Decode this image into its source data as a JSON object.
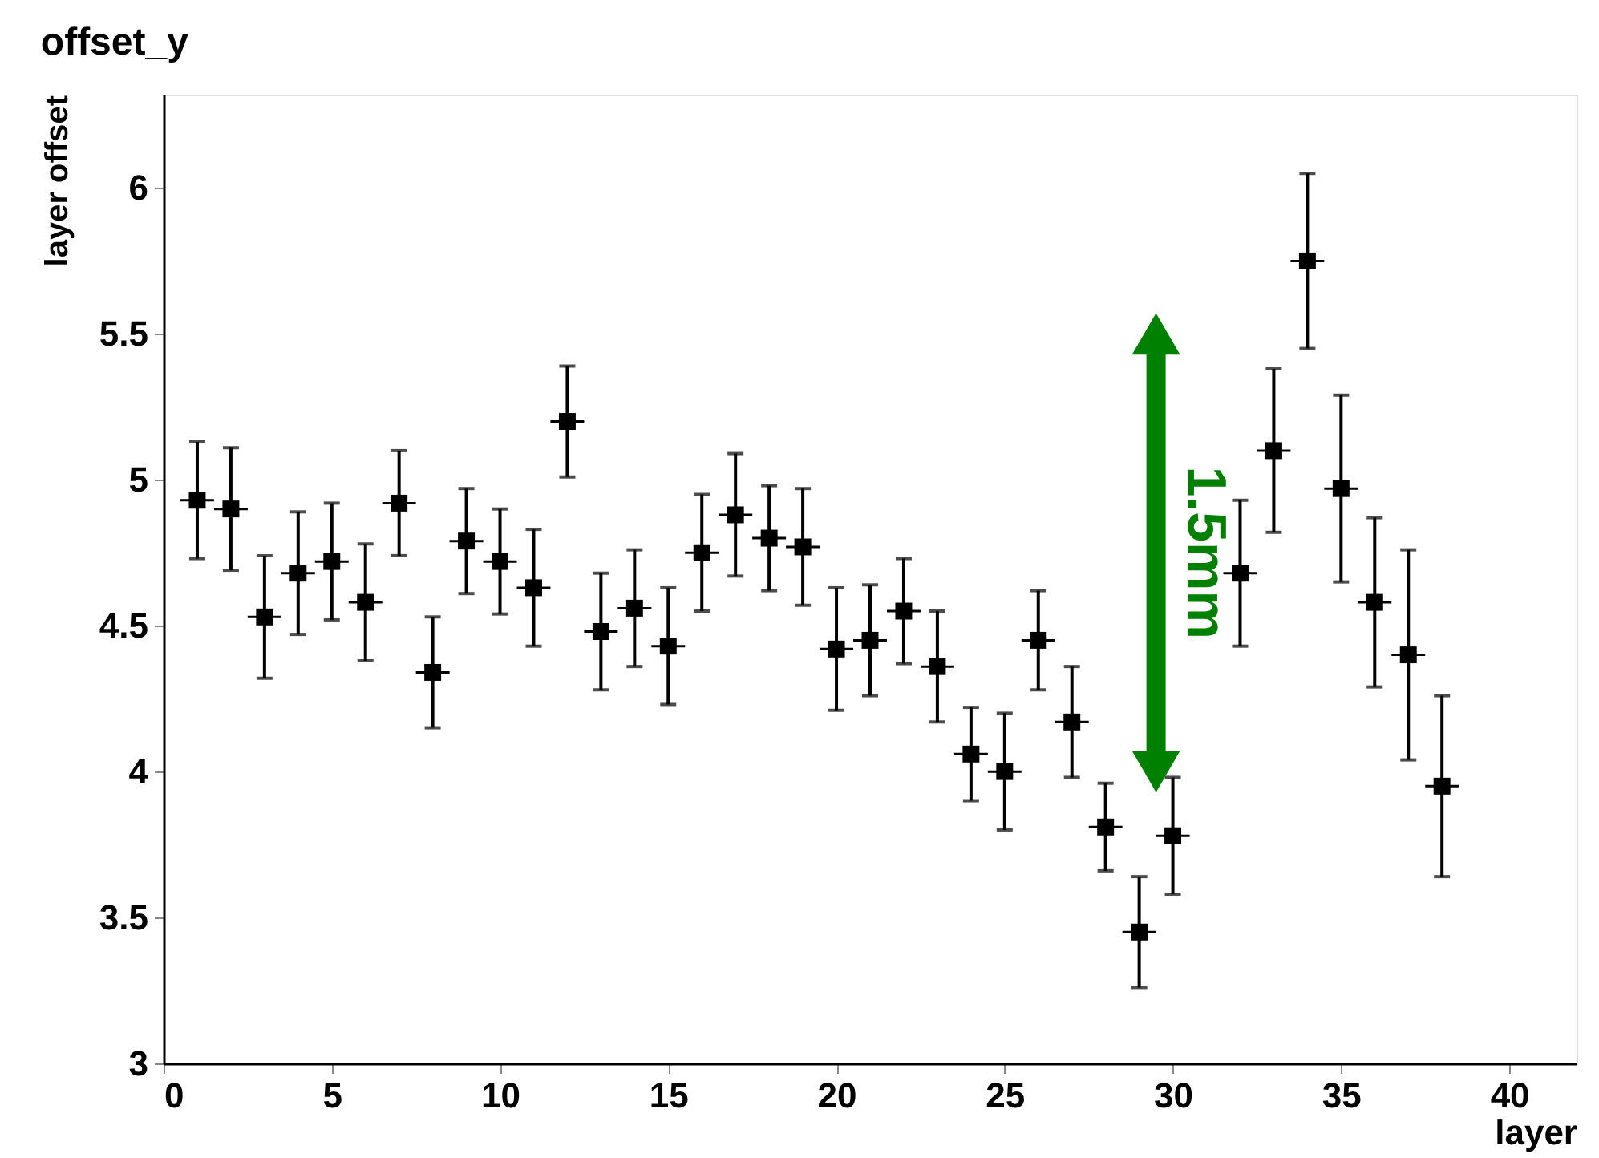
{
  "chart_data": {
    "type": "scatter",
    "title": "offset_y",
    "xlabel": "layer",
    "ylabel": "layer offset",
    "x": [
      1,
      2,
      3,
      4,
      5,
      6,
      7,
      8,
      9,
      10,
      11,
      12,
      13,
      14,
      15,
      16,
      17,
      18,
      19,
      20,
      21,
      22,
      23,
      24,
      25,
      26,
      27,
      28,
      29,
      30,
      32,
      33,
      34,
      35,
      36,
      37,
      38
    ],
    "values": [
      4.93,
      4.9,
      4.53,
      4.68,
      4.72,
      4.58,
      4.92,
      4.34,
      4.79,
      4.72,
      4.63,
      5.2,
      4.48,
      4.56,
      4.43,
      4.75,
      4.88,
      4.8,
      4.77,
      4.42,
      4.45,
      4.55,
      4.36,
      4.06,
      4.0,
      4.45,
      4.17,
      3.81,
      3.45,
      3.78,
      4.68,
      5.1,
      5.75,
      4.97,
      4.58,
      4.4,
      3.95
    ],
    "errors": [
      0.2,
      0.21,
      0.21,
      0.21,
      0.2,
      0.2,
      0.18,
      0.19,
      0.18,
      0.18,
      0.2,
      0.19,
      0.2,
      0.2,
      0.2,
      0.2,
      0.21,
      0.18,
      0.2,
      0.21,
      0.19,
      0.18,
      0.19,
      0.16,
      0.2,
      0.17,
      0.19,
      0.15,
      0.19,
      0.2,
      0.25,
      0.28,
      0.3,
      0.32,
      0.29,
      0.36,
      0.31
    ],
    "xerrors": [
      0.5,
      0.5,
      0.5,
      0.5,
      0.5,
      0.5,
      0.5,
      0.5,
      0.5,
      0.5,
      0.5,
      0.5,
      0.5,
      0.5,
      0.5,
      0.5,
      0.5,
      0.5,
      0.5,
      0.5,
      0.5,
      0.5,
      0.5,
      0.5,
      0.5,
      0.5,
      0.5,
      0.5,
      0.5,
      0.5,
      0.5,
      0.5,
      0.5,
      0.5,
      0.5,
      0.5,
      0.5
    ],
    "color": "#000000",
    "marker": "square",
    "series": [
      {
        "type": "line",
        "color": "#008000",
        "marker": "triangle",
        "x": [
          29.5,
          29.5
        ],
        "values": [
          4.0,
          5.5
        ]
      }
    ],
    "annotations": [
      "1.5mm"
    ],
    "xlim": [
      0,
      42
    ],
    "xticks": [
      0,
      5,
      10,
      15,
      20,
      25,
      30,
      35,
      40
    ],
    "ylim": [
      3,
      6.32
    ],
    "yticks": [
      3,
      3.5,
      4,
      4.5,
      5,
      5.5,
      6
    ],
    "grid": false
  }
}
